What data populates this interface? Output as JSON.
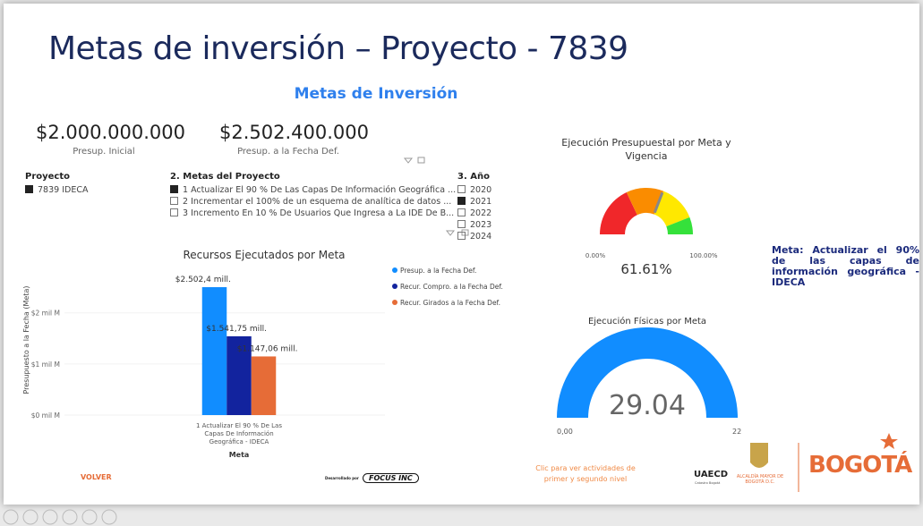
{
  "header": {
    "title": "Metas de inversión – Proyecto - 7839",
    "subtitle": "Metas de Inversión"
  },
  "kpis": [
    {
      "value": "$2.000.000.000",
      "label": "Presup. Inicial"
    },
    {
      "value": "$2.502.400.000",
      "label": "Presup. a la Fecha Def."
    }
  ],
  "slicers": [
    {
      "title": "Proyecto",
      "items": [
        {
          "label": "7839 IDECA",
          "checked": true
        }
      ]
    },
    {
      "title": "2. Metas del Proyecto",
      "items": [
        {
          "label": "1 Actualizar El 90 % De Las Capas De Información Geográfica ...",
          "checked": true
        },
        {
          "label": "2 Incrementar el 100% de un esquema de analítica de datos ...",
          "checked": false
        },
        {
          "label": "3 Incremento En 10 % De Usuarios Que Ingresa a La IDE De B...",
          "checked": false
        }
      ]
    },
    {
      "title": "3. Año",
      "items": [
        {
          "label": "2020",
          "checked": false
        },
        {
          "label": "2021",
          "checked": true
        },
        {
          "label": "2022",
          "checked": false
        },
        {
          "label": "2023",
          "checked": false
        },
        {
          "label": "2024",
          "checked": false
        }
      ]
    }
  ],
  "bar_chart": {
    "type": "bar",
    "title": "Recursos Ejecutados por Meta",
    "categories": [
      "1 Actualizar El 90 % De Las Capas De Información Geográfica - IDECA"
    ],
    "xlabel": "Meta",
    "ylabel": "Presupuesto a la Fecha (Meta)",
    "series": [
      {
        "name": "Presup. a la Fecha Def.",
        "color": "#118dff",
        "values": [
          2.5024
        ],
        "value_labels": [
          "$2.502,4 mill."
        ]
      },
      {
        "name": "Recur. Compro. a la Fecha Def.",
        "color": "#12239e",
        "values": [
          1.54175
        ],
        "value_labels": [
          "$1.541,75 mill."
        ]
      },
      {
        "name": "Recur. Girados a la Fecha Def.",
        "color": "#e66c37",
        "values": [
          1.14706
        ],
        "value_labels": [
          "$1.147,06 mill."
        ]
      }
    ],
    "ylim": [
      0,
      2.8
    ],
    "yticks": [
      {
        "value": 0,
        "label": "$0 mil M"
      },
      {
        "value": 1,
        "label": "$1 mil M"
      },
      {
        "value": 2,
        "label": "$2 mil M"
      }
    ]
  },
  "gauge_budget": {
    "type": "gauge",
    "title": "Ejecución Presupuestal por Meta y Vigencia",
    "value": 61.61,
    "value_label": "61.61%",
    "min": 0,
    "max": 100,
    "min_label": "0.00%",
    "max_label": "100.00%"
  },
  "meta_note": "Meta: Actualizar el 90% de las capas de información geográfica - IDECA",
  "gauge_physical": {
    "type": "gauge",
    "title": "Ejecución Físicas por Meta",
    "value": 29.04,
    "min": 0,
    "max": 22,
    "min_label": "0,00",
    "max_label": "22",
    "color": "#118dff"
  },
  "footer": {
    "back": "VOLVER",
    "credit": "Desarrollado por",
    "brand": "FOCUS INC",
    "link": "Clic para ver actividades de primer y segundo nivel",
    "logo_uaecd": "UAECD",
    "logo_uaecd_sub": "Catastro Bogotá",
    "logo_alcaldia": "ALCALDÍA MAYOR DE BOGOTÁ D.C.",
    "logo_bogota": "BOGOTÁ"
  }
}
